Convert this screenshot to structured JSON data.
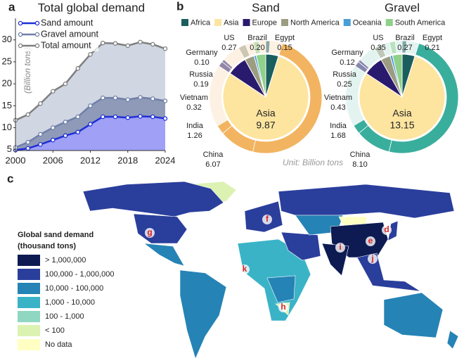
{
  "chart_data": [
    {
      "type": "area",
      "panel": "a",
      "title": "Total global demand",
      "y_label": "(Billion tons)",
      "x": [
        2000,
        2002,
        2004,
        2006,
        2008,
        2010,
        2012,
        2014,
        2016,
        2018,
        2020,
        2022,
        2024
      ],
      "xlim": [
        2000,
        2024
      ],
      "xticks": [
        2000,
        2006,
        2012,
        2018,
        2024
      ],
      "ylim": [
        4.8,
        33
      ],
      "yticks": [
        5,
        10,
        15,
        20,
        25,
        30
      ],
      "series": [
        {
          "name": "Sand amount",
          "color": "#1f2fd6",
          "fill": "#9fa0f6",
          "values": [
            4.9,
            5.3,
            6.2,
            7.2,
            8.2,
            9.0,
            10.8,
            12.5,
            12.5,
            12.3,
            12.6,
            12.5,
            12.1
          ]
        },
        {
          "name": "Gravel amount",
          "color": "#6f7fa8",
          "fill": "#8f9ab8",
          "values": [
            5.5,
            6.7,
            8.5,
            10.0,
            11.3,
            12.5,
            15.0,
            16.8,
            16.8,
            16.4,
            16.9,
            16.6,
            16.1
          ]
        },
        {
          "name": "Total amount",
          "color": "#7f7f7f",
          "fill": "#d0d6e2",
          "values": [
            11.7,
            13.0,
            15.5,
            18.3,
            20.0,
            23.5,
            26.7,
            29.3,
            29.2,
            28.7,
            29.5,
            29.0,
            28.0
          ]
        }
      ]
    },
    {
      "type": "donut",
      "panel": "b",
      "title": "Sand",
      "unit_note": "Unit: Billion tons",
      "categories": [
        "Africa",
        "Asia",
        "Europe",
        "North America",
        "Oceania",
        "South America"
      ],
      "colors": [
        "#1b5e5e",
        "#fde5a0",
        "#2a1a6e",
        "#9c9c82",
        "#4a9ed6",
        "#8fd08a"
      ],
      "values": [
        0.6,
        9.87,
        0.95,
        0.45,
        0.1,
        0.45
      ],
      "ring_color": "#f2b460",
      "ring_background": "#fdf1e3",
      "countries": {
        "categories": [
          "US",
          "Brazil",
          "Egypt",
          "Germany",
          "Russia",
          "Vietnam",
          "India",
          "China"
        ],
        "values": [
          0.27,
          0.2,
          0.15,
          0.1,
          0.19,
          0.32,
          1.26,
          6.07
        ],
        "value_labels": [
          "0.27",
          "0.20",
          "0.15",
          "0.10",
          "0.19",
          "0.32",
          "1.26",
          "6.07"
        ]
      }
    },
    {
      "type": "donut",
      "title": "Gravel",
      "values": [
        0.8,
        13.15,
        1.25,
        0.6,
        0.15,
        0.6
      ],
      "ring_color": "#3aae9c",
      "ring_background": "#e3f3f0",
      "countries": {
        "categories": [
          "US",
          "Brazil",
          "Egypt",
          "Germany",
          "Russia",
          "Vietnam",
          "India",
          "China"
        ],
        "values": [
          0.35,
          0.27,
          0.21,
          0.12,
          0.25,
          0.43,
          1.68,
          8.1
        ],
        "value_labels": [
          "0.35",
          "0.27",
          "0.21",
          "0.12",
          "0.25",
          "0.43",
          "1.68",
          "8.10"
        ]
      }
    },
    {
      "type": "map",
      "panel": "c",
      "legend_title": "Global sand demand",
      "legend_subtitle": "(thousand tons)",
      "categories": [
        "> 1,000,000",
        "100,000 - 1,000,000",
        "10,000 - 100,000",
        "1,000 - 10,000",
        "100 - 1,000",
        "< 100",
        "No data"
      ],
      "colors": [
        "#0d1b52",
        "#2a3e9c",
        "#2583b5",
        "#3bb3c7",
        "#8fd7c0",
        "#dcf2b2",
        "#ffffc4"
      ],
      "annotations": [
        "d",
        "e",
        "f",
        "g",
        "h",
        "i",
        "j",
        "k"
      ]
    }
  ]
}
